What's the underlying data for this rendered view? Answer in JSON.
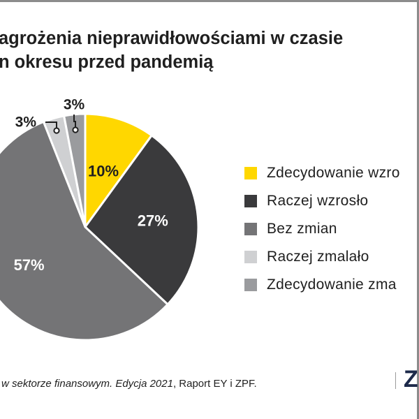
{
  "title_lines": [
    "agrożenia nieprawidłowościami w czasie",
    "n okresu przed pandemią"
  ],
  "chart_data": {
    "type": "pie",
    "title": "agrożenia nieprawidłowościami w czasie n okresu przed pandemią",
    "start": "12 o'clock",
    "direction": "clockwise",
    "slices": [
      {
        "label": "Zdecydowanie wzro",
        "value": 10,
        "display": "10%",
        "color": "#FFD700",
        "label_color": "#1f1f1f"
      },
      {
        "label": "Raczej wzrosło",
        "value": 27,
        "display": "27%",
        "color": "#3A3A3C",
        "label_color": "#ffffff"
      },
      {
        "label": "Bez zmian",
        "value": 57,
        "display": "57%",
        "color": "#747476",
        "label_color": "#ffffff"
      },
      {
        "label": "Raczej zmalało",
        "value": 3,
        "display": "3%",
        "color": "#CFD0D2",
        "label_color": "#1f1f1f"
      },
      {
        "label": "Zdecydowanie zma",
        "value": 3,
        "display": "3%",
        "color": "#9A9B9E",
        "label_color": "#1f1f1f"
      }
    ],
    "legend_position": "right"
  },
  "source": {
    "italic": "w sektorze finansowym. Edycja 2021",
    "rest": ", Raport EY i ZPF."
  },
  "logo_text": "Z"
}
